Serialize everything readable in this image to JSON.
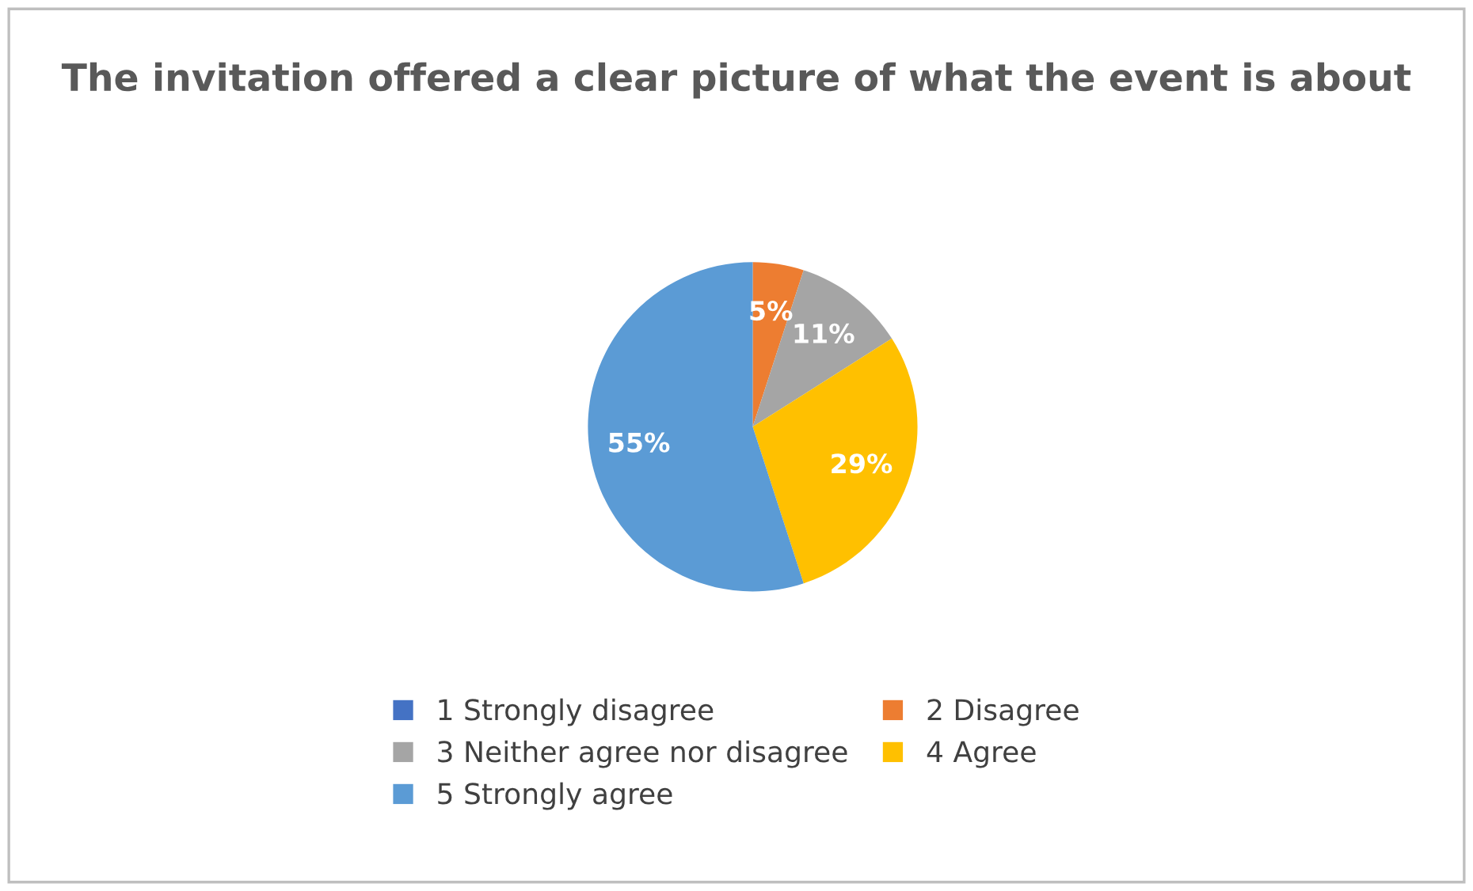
{
  "chart_data": {
    "type": "pie",
    "title": "The invitation offered a clear picture of what the event is about",
    "categories": [
      "1 Strongly disagree",
      "2 Disagree",
      "3 Neither agree nor disagree",
      "4 Agree",
      "5 Strongly agree"
    ],
    "values": [
      0,
      5,
      11,
      29,
      55
    ],
    "colors": [
      "#4472c4",
      "#ed7d31",
      "#a5a5a5",
      "#ffc000",
      "#5b9bd5"
    ],
    "value_labels": [
      null,
      "5%",
      "11%",
      "29%",
      "55%"
    ],
    "legend": "bottom"
  }
}
